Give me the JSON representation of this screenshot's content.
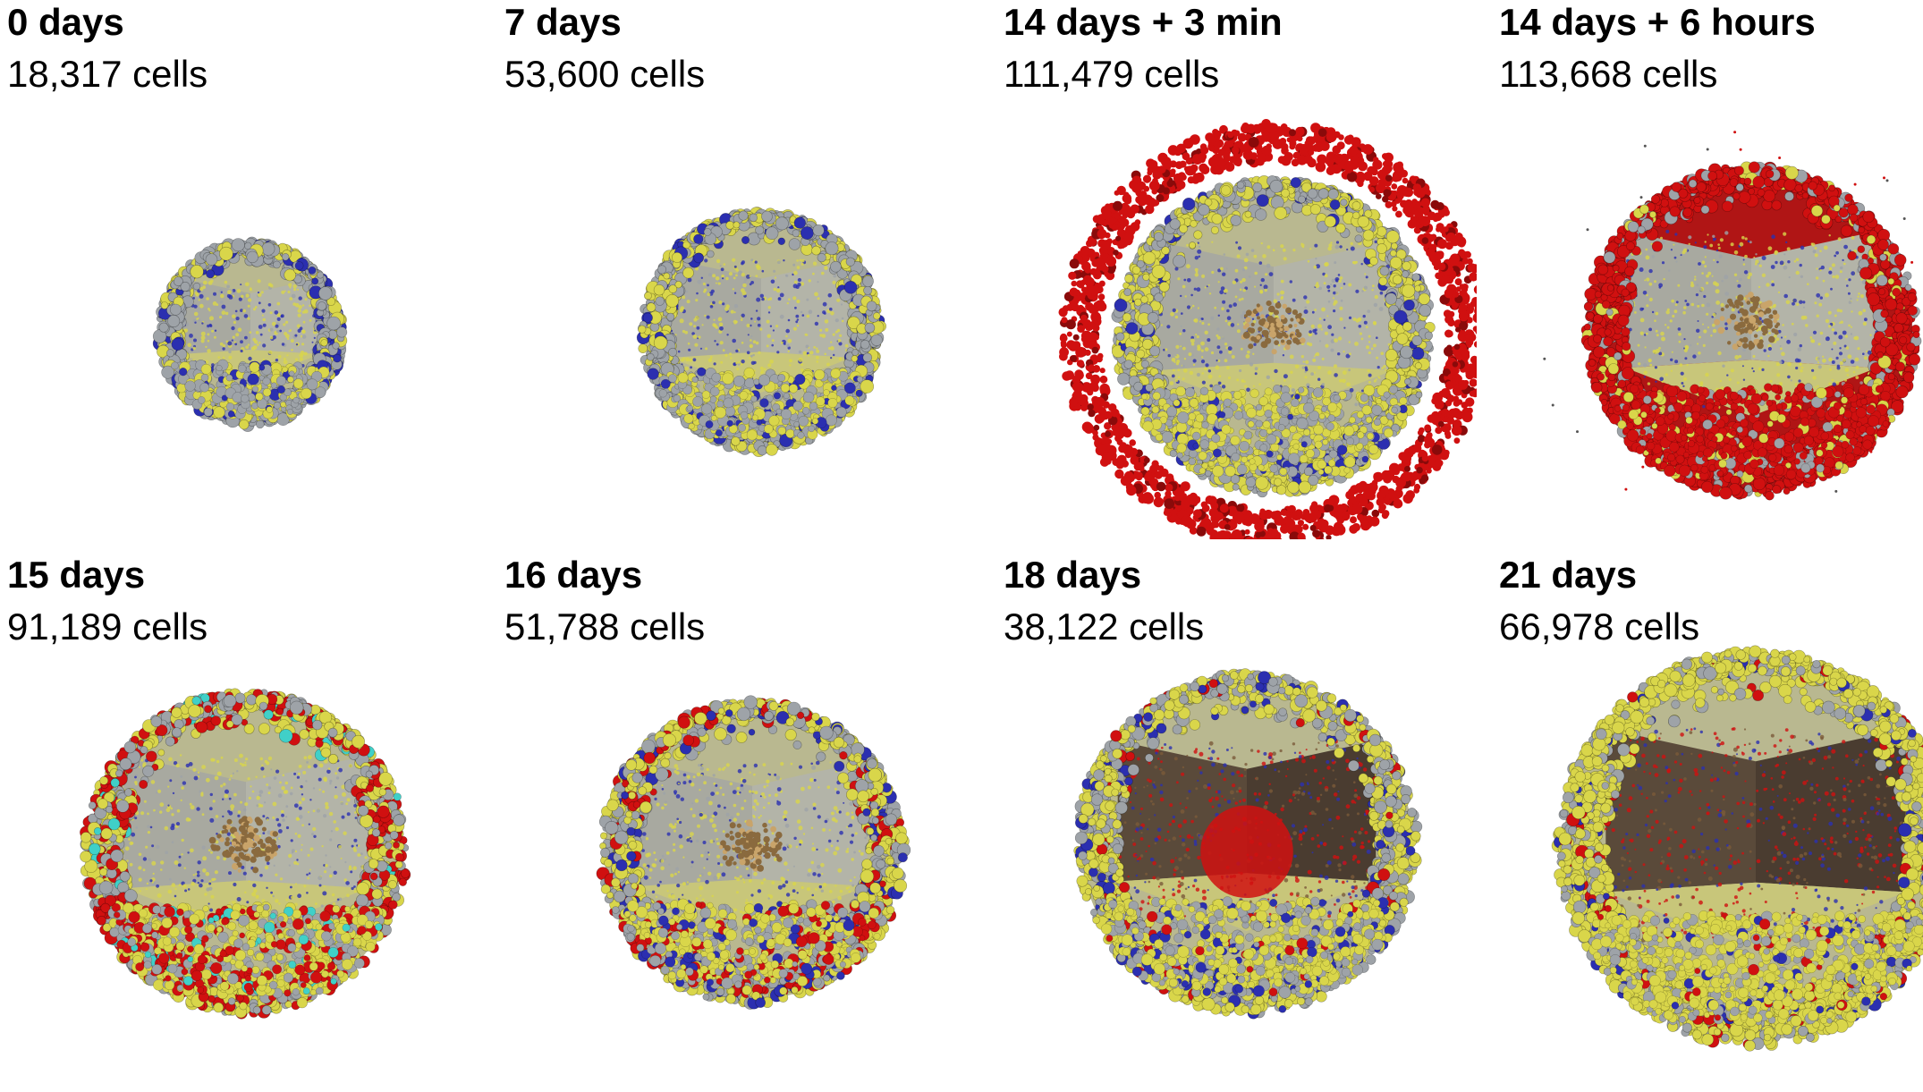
{
  "panels": [
    {
      "time": "0 days",
      "cells": "18,317 cells",
      "stage": "compact"
    },
    {
      "time": "7 days",
      "cells": "53,600 cells",
      "stage": "grown"
    },
    {
      "time": "14 days + 3 min",
      "cells": "111,479 cells",
      "stage": "halo"
    },
    {
      "time": "14 days + 6 hours",
      "cells": "113,668 cells",
      "stage": "red-shell"
    },
    {
      "time": "15 days",
      "cells": "91,189 cells",
      "stage": "mixed-shell"
    },
    {
      "time": "16 days",
      "cells": "51,788 cells",
      "stage": "mixed-shell-2"
    },
    {
      "time": "18 days",
      "cells": "38,122 cells",
      "stage": "red-core"
    },
    {
      "time": "21 days",
      "cells": "66,978 cells",
      "stage": "regrowth"
    }
  ],
  "colors": {
    "gray": "#9ea3a8",
    "yellow": "#d9d64a",
    "blue": "#2b2fb0",
    "red": "#d01010",
    "brown": "#8a6a3e",
    "cyan": "#40d0c8"
  }
}
